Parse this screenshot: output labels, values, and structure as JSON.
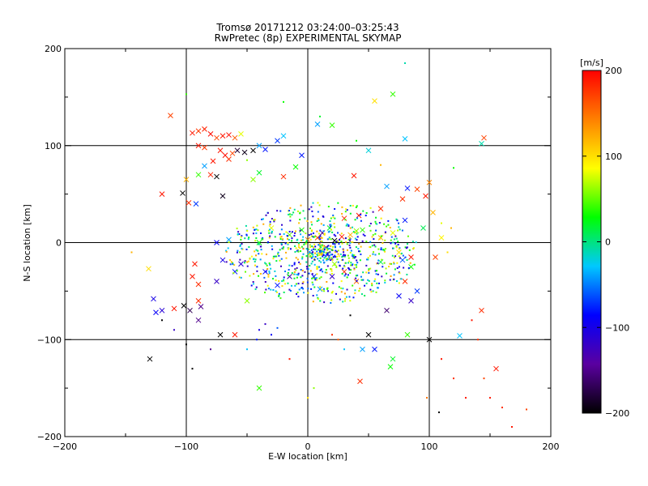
{
  "chart_data": {
    "type": "scatter",
    "title": "Tromsø 20171212 03:24:00–03:25:43",
    "subtitle": "RwPretec (8p) EXPERIMENTAL SKYMAP",
    "xlabel": "E-W location [km]",
    "ylabel": "N-S location [km]",
    "xlim": [
      -200,
      200
    ],
    "ylim": [
      -200,
      200
    ],
    "x_ticks": [
      "−200",
      "−100",
      "0",
      "100",
      "200"
    ],
    "y_ticks": [
      "−200",
      "−100",
      "0",
      "100",
      "200"
    ],
    "grid_lines": [
      -100,
      0,
      100
    ],
    "colorbar": {
      "label": "[m/s]",
      "range": [
        -200,
        200
      ],
      "ticks": [
        "−200",
        "−100",
        "0",
        "100",
        "200"
      ],
      "colormap": [
        "#000000",
        "#5a00a0",
        "#0000ff",
        "#00c8ff",
        "#00ff00",
        "#ffff00",
        "#ff8000",
        "#ff0000"
      ]
    },
    "markers": {
      "x": "cross (larger echoes)",
      "dot": "small point (weaker echoes)"
    },
    "points": [
      {
        "x": -113,
        "y": 131,
        "v": 170,
        "m": "x"
      },
      {
        "x": -95,
        "y": 113,
        "v": 190,
        "m": "x"
      },
      {
        "x": -90,
        "y": 115,
        "v": 175,
        "m": "x"
      },
      {
        "x": -85,
        "y": 117,
        "v": 185,
        "m": "x"
      },
      {
        "x": -80,
        "y": 112,
        "v": 195,
        "m": "x"
      },
      {
        "x": -75,
        "y": 108,
        "v": 170,
        "m": "x"
      },
      {
        "x": -70,
        "y": 110,
        "v": 190,
        "m": "x"
      },
      {
        "x": -65,
        "y": 111,
        "v": 195,
        "m": "x"
      },
      {
        "x": -60,
        "y": 108,
        "v": 160,
        "m": "x"
      },
      {
        "x": -55,
        "y": 112,
        "v": 80,
        "m": "x"
      },
      {
        "x": -90,
        "y": 100,
        "v": 190,
        "m": "x"
      },
      {
        "x": -85,
        "y": 98,
        "v": 175,
        "m": "x"
      },
      {
        "x": -72,
        "y": 95,
        "v": 190,
        "m": "x"
      },
      {
        "x": -68,
        "y": 90,
        "v": 195,
        "m": "x"
      },
      {
        "x": -65,
        "y": 86,
        "v": 180,
        "m": "x"
      },
      {
        "x": -62,
        "y": 92,
        "v": 170,
        "m": "x"
      },
      {
        "x": -78,
        "y": 84,
        "v": 190,
        "m": "x"
      },
      {
        "x": -80,
        "y": 70,
        "v": 185,
        "m": "x"
      },
      {
        "x": -75,
        "y": 68,
        "v": -200,
        "m": "x"
      },
      {
        "x": -90,
        "y": 70,
        "v": 40,
        "m": "x"
      },
      {
        "x": -85,
        "y": 79,
        "v": -40,
        "m": "x"
      },
      {
        "x": -45,
        "y": 95,
        "v": -200,
        "m": "x"
      },
      {
        "x": -52,
        "y": 93,
        "v": -190,
        "m": "x"
      },
      {
        "x": -58,
        "y": 95,
        "v": -180,
        "m": "x"
      },
      {
        "x": -40,
        "y": 100,
        "v": -40,
        "m": "x"
      },
      {
        "x": -35,
        "y": 96,
        "v": -80,
        "m": "x"
      },
      {
        "x": -25,
        "y": 105,
        "v": -70,
        "m": "x"
      },
      {
        "x": -20,
        "y": 110,
        "v": -30,
        "m": "x"
      },
      {
        "x": -45,
        "y": 65,
        "v": 60,
        "m": "x"
      },
      {
        "x": -40,
        "y": 72,
        "v": 20,
        "m": "x"
      },
      {
        "x": -20,
        "y": 68,
        "v": 180,
        "m": "x"
      },
      {
        "x": -10,
        "y": 78,
        "v": 30,
        "m": "x"
      },
      {
        "x": -5,
        "y": 90,
        "v": -80,
        "m": "x"
      },
      {
        "x": 8,
        "y": 122,
        "v": -40,
        "m": "x"
      },
      {
        "x": 20,
        "y": 121,
        "v": 40,
        "m": "x"
      },
      {
        "x": 55,
        "y": 146,
        "v": 100,
        "m": "x"
      },
      {
        "x": 70,
        "y": 153,
        "v": 40,
        "m": "x"
      },
      {
        "x": 50,
        "y": 95,
        "v": -20,
        "m": "x"
      },
      {
        "x": 80,
        "y": 107,
        "v": -30,
        "m": "x"
      },
      {
        "x": 38,
        "y": 69,
        "v": 190,
        "m": "x"
      },
      {
        "x": 65,
        "y": 58,
        "v": -40,
        "m": "x"
      },
      {
        "x": 82,
        "y": 56,
        "v": -80,
        "m": "x"
      },
      {
        "x": 78,
        "y": 45,
        "v": 180,
        "m": "x"
      },
      {
        "x": 90,
        "y": 55,
        "v": 170,
        "m": "x"
      },
      {
        "x": 97,
        "y": 48,
        "v": 190,
        "m": "x"
      },
      {
        "x": 100,
        "y": 62,
        "v": 140,
        "m": "x"
      },
      {
        "x": 103,
        "y": 31,
        "v": 120,
        "m": "x"
      },
      {
        "x": 95,
        "y": 15,
        "v": 10,
        "m": "x"
      },
      {
        "x": 110,
        "y": 5,
        "v": 90,
        "m": "x"
      },
      {
        "x": 105,
        "y": -15,
        "v": 170,
        "m": "x"
      },
      {
        "x": 85,
        "y": -15,
        "v": 190,
        "m": "x"
      },
      {
        "x": 80,
        "y": -40,
        "v": 180,
        "m": "x"
      },
      {
        "x": 90,
        "y": -50,
        "v": -70,
        "m": "x"
      },
      {
        "x": 85,
        "y": -60,
        "v": -120,
        "m": "x"
      },
      {
        "x": 75,
        "y": -55,
        "v": -90,
        "m": "x"
      },
      {
        "x": 65,
        "y": -70,
        "v": -160,
        "m": "x"
      },
      {
        "x": 50,
        "y": -95,
        "v": -200,
        "m": "x"
      },
      {
        "x": 82,
        "y": -95,
        "v": 40,
        "m": "x"
      },
      {
        "x": 100,
        "y": -100,
        "v": -200,
        "m": "x"
      },
      {
        "x": 45,
        "y": -110,
        "v": -40,
        "m": "x"
      },
      {
        "x": 55,
        "y": -110,
        "v": -80,
        "m": "x"
      },
      {
        "x": 70,
        "y": -120,
        "v": 20,
        "m": "x"
      },
      {
        "x": 68,
        "y": -128,
        "v": 30,
        "m": "x"
      },
      {
        "x": 43,
        "y": -143,
        "v": 180,
        "m": "x"
      },
      {
        "x": 125,
        "y": -96,
        "v": -30,
        "m": "x"
      },
      {
        "x": 143,
        "y": -70,
        "v": 180,
        "m": "x"
      },
      {
        "x": 145,
        "y": 108,
        "v": 170,
        "m": "x"
      },
      {
        "x": 143,
        "y": 102,
        "v": -10,
        "m": "x"
      },
      {
        "x": 155,
        "y": -130,
        "v": 190,
        "m": "x"
      },
      {
        "x": -131,
        "y": -27,
        "v": 100,
        "m": "x"
      },
      {
        "x": -120,
        "y": 50,
        "v": 190,
        "m": "x"
      },
      {
        "x": -103,
        "y": 51,
        "v": -200,
        "m": "x"
      },
      {
        "x": -98,
        "y": 41,
        "v": 180,
        "m": "x"
      },
      {
        "x": -92,
        "y": 40,
        "v": -70,
        "m": "x"
      },
      {
        "x": -100,
        "y": 65,
        "v": 120,
        "m": "x"
      },
      {
        "x": -70,
        "y": 48,
        "v": -190,
        "m": "x"
      },
      {
        "x": -95,
        "y": -35,
        "v": 190,
        "m": "x"
      },
      {
        "x": -90,
        "y": -43,
        "v": 180,
        "m": "x"
      },
      {
        "x": -93,
        "y": -22,
        "v": 190,
        "m": "x"
      },
      {
        "x": -75,
        "y": -40,
        "v": -120,
        "m": "x"
      },
      {
        "x": -60,
        "y": -30,
        "v": -80,
        "m": "x"
      },
      {
        "x": -55,
        "y": -22,
        "v": -110,
        "m": "x"
      },
      {
        "x": -70,
        "y": -18,
        "v": -100,
        "m": "x"
      },
      {
        "x": -75,
        "y": 0,
        "v": -90,
        "m": "x"
      },
      {
        "x": -90,
        "y": -60,
        "v": 180,
        "m": "x"
      },
      {
        "x": -102,
        "y": -65,
        "v": -200,
        "m": "x"
      },
      {
        "x": -97,
        "y": -70,
        "v": -170,
        "m": "x"
      },
      {
        "x": -88,
        "y": -66,
        "v": -150,
        "m": "x"
      },
      {
        "x": -120,
        "y": -70,
        "v": -110,
        "m": "x"
      },
      {
        "x": -125,
        "y": -72,
        "v": -90,
        "m": "x"
      },
      {
        "x": -127,
        "y": -58,
        "v": -100,
        "m": "x"
      },
      {
        "x": -110,
        "y": -68,
        "v": 190,
        "m": "x"
      },
      {
        "x": -90,
        "y": -80,
        "v": -150,
        "m": "x"
      },
      {
        "x": -72,
        "y": -95,
        "v": -200,
        "m": "x"
      },
      {
        "x": -60,
        "y": -95,
        "v": 190,
        "m": "x"
      },
      {
        "x": -130,
        "y": -120,
        "v": -200,
        "m": "x"
      },
      {
        "x": -40,
        "y": -150,
        "v": 40,
        "m": "x"
      },
      {
        "x": -25,
        "y": -44,
        "v": -80,
        "m": "x"
      },
      {
        "x": -35,
        "y": -30,
        "v": -90,
        "m": "x"
      },
      {
        "x": -15,
        "y": -35,
        "v": -130,
        "m": "x"
      },
      {
        "x": 5,
        "y": -35,
        "v": -80,
        "m": "x"
      },
      {
        "x": 0,
        "y": 3,
        "v": 140,
        "m": "x"
      },
      {
        "x": 8,
        "y": 5,
        "v": 160,
        "m": "x"
      },
      {
        "x": 15,
        "y": -5,
        "v": 180,
        "m": "x"
      },
      {
        "x": 22,
        "y": 2,
        "v": -200,
        "m": "x"
      },
      {
        "x": 28,
        "y": 6,
        "v": 190,
        "m": "x"
      },
      {
        "x": 35,
        "y": 8,
        "v": 120,
        "m": "x"
      },
      {
        "x": 40,
        "y": 12,
        "v": 60,
        "m": "x"
      },
      {
        "x": 45,
        "y": 13,
        "v": 40,
        "m": "x"
      },
      {
        "x": 12,
        "y": 10,
        "v": -150,
        "m": "x"
      },
      {
        "x": 18,
        "y": 15,
        "v": 20,
        "m": "x"
      },
      {
        "x": 30,
        "y": 25,
        "v": 180,
        "m": "x"
      },
      {
        "x": 42,
        "y": 28,
        "v": 190,
        "m": "x"
      },
      {
        "x": 22,
        "y": -22,
        "v": 60,
        "m": "x"
      },
      {
        "x": 30,
        "y": -30,
        "v": 180,
        "m": "x"
      },
      {
        "x": 20,
        "y": -35,
        "v": -120,
        "m": "x"
      },
      {
        "x": 10,
        "y": -48,
        "v": -40,
        "m": "x"
      },
      {
        "x": -5,
        "y": 13,
        "v": 30,
        "m": "x"
      },
      {
        "x": -15,
        "y": 8,
        "v": 50,
        "m": "x"
      },
      {
        "x": 60,
        "y": -20,
        "v": 10,
        "m": "x"
      },
      {
        "x": 70,
        "y": 10,
        "v": 80,
        "m": "x"
      },
      {
        "x": 60,
        "y": 5,
        "v": 120,
        "m": "x"
      },
      {
        "x": -40,
        "y": 0,
        "v": 30,
        "m": "x"
      },
      {
        "x": -30,
        "y": 15,
        "v": 80,
        "m": "x"
      },
      {
        "x": 40,
        "y": -40,
        "v": 150,
        "m": "x"
      },
      {
        "x": 78,
        "y": -18,
        "v": -60,
        "m": "x"
      },
      {
        "x": 75,
        "y": -10,
        "v": 100,
        "m": "x"
      },
      {
        "x": 80,
        "y": 23,
        "v": -80,
        "m": "x"
      },
      {
        "x": 60,
        "y": 35,
        "v": 180,
        "m": "x"
      },
      {
        "x": 85,
        "y": -25,
        "v": 30,
        "m": "x"
      },
      {
        "x": -65,
        "y": 3,
        "v": -40,
        "m": "x"
      },
      {
        "x": -50,
        "y": -60,
        "v": 60,
        "m": "x"
      },
      {
        "x": 135,
        "y": -80,
        "v": 190,
        "m": "dot"
      },
      {
        "x": 140,
        "y": -100,
        "v": 180,
        "m": "dot"
      },
      {
        "x": 145,
        "y": -140,
        "v": 170,
        "m": "dot"
      },
      {
        "x": 150,
        "y": -160,
        "v": 190,
        "m": "dot"
      },
      {
        "x": 160,
        "y": -170,
        "v": 180,
        "m": "dot"
      },
      {
        "x": 168,
        "y": -190,
        "v": 190,
        "m": "dot"
      },
      {
        "x": 180,
        "y": -172,
        "v": 170,
        "m": "dot"
      },
      {
        "x": 120,
        "y": -140,
        "v": 180,
        "m": "dot"
      },
      {
        "x": 110,
        "y": -120,
        "v": 190,
        "m": "dot"
      },
      {
        "x": 98,
        "y": -160,
        "v": 150,
        "m": "dot"
      },
      {
        "x": 108,
        "y": -175,
        "v": -200,
        "m": "dot"
      },
      {
        "x": 130,
        "y": -160,
        "v": 190,
        "m": "dot"
      },
      {
        "x": 80,
        "y": 185,
        "v": -10,
        "m": "dot"
      },
      {
        "x": 40,
        "y": 105,
        "v": 30,
        "m": "dot"
      },
      {
        "x": 60,
        "y": 80,
        "v": 120,
        "m": "dot"
      },
      {
        "x": 120,
        "y": 77,
        "v": 30,
        "m": "dot"
      },
      {
        "x": 110,
        "y": 20,
        "v": 80,
        "m": "dot"
      },
      {
        "x": 118,
        "y": 15,
        "v": 120,
        "m": "dot"
      },
      {
        "x": 115,
        "y": -10,
        "v": 100,
        "m": "dot"
      },
      {
        "x": -100,
        "y": 153,
        "v": 40,
        "m": "dot"
      },
      {
        "x": -20,
        "y": 145,
        "v": 30,
        "m": "dot"
      },
      {
        "x": 10,
        "y": 130,
        "v": 20,
        "m": "dot"
      },
      {
        "x": -50,
        "y": 85,
        "v": 60,
        "m": "dot"
      },
      {
        "x": 0,
        "y": -160,
        "v": 100,
        "m": "dot"
      },
      {
        "x": 5,
        "y": -150,
        "v": 60,
        "m": "dot"
      },
      {
        "x": -15,
        "y": -120,
        "v": 190,
        "m": "dot"
      },
      {
        "x": -95,
        "y": -130,
        "v": -200,
        "m": "dot"
      },
      {
        "x": -100,
        "y": -105,
        "v": -200,
        "m": "dot"
      },
      {
        "x": -120,
        "y": -80,
        "v": -200,
        "m": "dot"
      },
      {
        "x": -110,
        "y": -90,
        "v": -120,
        "m": "dot"
      },
      {
        "x": -80,
        "y": -110,
        "v": -150,
        "m": "dot"
      },
      {
        "x": -40,
        "y": -90,
        "v": -100,
        "m": "dot"
      },
      {
        "x": -35,
        "y": -84,
        "v": -120,
        "m": "dot"
      },
      {
        "x": -30,
        "y": -95,
        "v": -90,
        "m": "dot"
      },
      {
        "x": -42,
        "y": -100,
        "v": -80,
        "m": "dot"
      },
      {
        "x": -25,
        "y": -88,
        "v": -60,
        "m": "dot"
      },
      {
        "x": -50,
        "y": -110,
        "v": -30,
        "m": "dot"
      },
      {
        "x": 20,
        "y": -95,
        "v": 180,
        "m": "dot"
      },
      {
        "x": 25,
        "y": -100,
        "v": 160,
        "m": "dot"
      },
      {
        "x": 30,
        "y": -110,
        "v": -30,
        "m": "dot"
      },
      {
        "x": 35,
        "y": -75,
        "v": -200,
        "m": "dot"
      },
      {
        "x": -145,
        "y": -10,
        "v": 120,
        "m": "dot"
      }
    ]
  }
}
